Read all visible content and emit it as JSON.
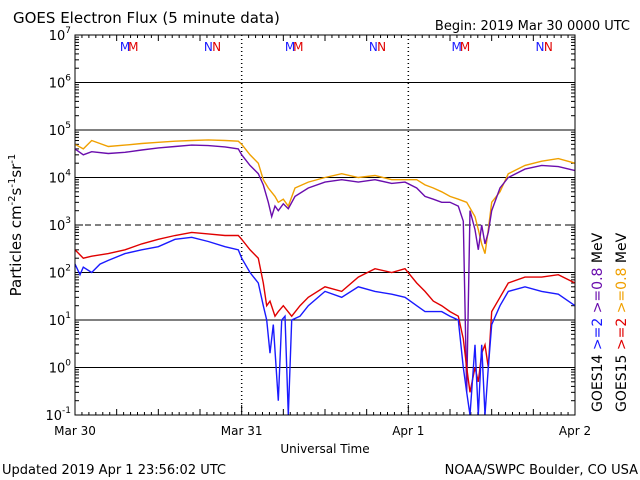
{
  "chart_data": {
    "type": "line",
    "title": "GOES Electron Flux (5 minute data)",
    "begin_label": "Begin: 2019 Mar 30 0000 UTC",
    "xlabel": "Universal Time",
    "ylabel_parts": {
      "main": "Particles cm",
      "exp1": "-2",
      "mid1": "s",
      "exp2": "-1",
      "mid2": "sr",
      "exp3": "-1"
    },
    "x_ticks": [
      "Mar 30",
      "Mar 31",
      "Apr 1",
      "Apr 2"
    ],
    "x_unit": "days since 2019 Mar 30 00:00 UTC",
    "xlim": [
      0,
      3
    ],
    "y_scale": "log",
    "ylim": [
      0.1,
      10000000
    ],
    "y_ticks": [
      {
        "base": "10",
        "exp": "7"
      },
      {
        "base": "10",
        "exp": "6"
      },
      {
        "base": "10",
        "exp": "5"
      },
      {
        "base": "10",
        "exp": "4"
      },
      {
        "base": "10",
        "exp": "3"
      },
      {
        "base": "10",
        "exp": "2"
      },
      {
        "base": "10",
        "exp": "1"
      },
      {
        "base": "10",
        "exp": "0"
      },
      {
        "base": "10",
        "exp": "-1"
      }
    ],
    "dashed_threshold": 1000,
    "magnetopause_markers": [
      {
        "label": "M",
        "color": "#1a1aff",
        "days": [
          0.3,
          1.29,
          2.29
        ]
      },
      {
        "label": "M",
        "color": "#e00000",
        "days": [
          0.35,
          1.34,
          2.34
        ]
      },
      {
        "label": "N",
        "color": "#1a1aff",
        "days": [
          0.8,
          1.79,
          2.79
        ]
      },
      {
        "label": "N",
        "color": "#e00000",
        "days": [
          0.85,
          1.84,
          2.84
        ]
      }
    ],
    "right_labels": [
      {
        "text": "GOES14",
        "color": "#000000"
      },
      {
        "text": ">=2",
        "color": "#1a1aff"
      },
      {
        "text": ">=0.8",
        "color": "#6a0dad"
      },
      {
        "text": "MeV",
        "color": "#000000"
      },
      {
        "text": "GOES15",
        "color": "#000000"
      },
      {
        "text": ">=2",
        "color": "#e00000"
      },
      {
        "text": ">=0.8",
        "color": "#f0a000"
      },
      {
        "text": "MeV",
        "color": "#000000"
      }
    ],
    "series": [
      {
        "name": "GOES15 >=0.8 MeV",
        "color": "#f0a000",
        "points": [
          [
            0,
            50000
          ],
          [
            0.05,
            40000
          ],
          [
            0.1,
            60000
          ],
          [
            0.2,
            45000
          ],
          [
            0.3,
            48000
          ],
          [
            0.4,
            52000
          ],
          [
            0.5,
            55000
          ],
          [
            0.6,
            58000
          ],
          [
            0.7,
            60000
          ],
          [
            0.8,
            62000
          ],
          [
            0.9,
            60000
          ],
          [
            0.98,
            58000
          ],
          [
            1.0,
            50000
          ],
          [
            1.05,
            30000
          ],
          [
            1.1,
            20000
          ],
          [
            1.13,
            9000
          ],
          [
            1.16,
            6000
          ],
          [
            1.2,
            4000
          ],
          [
            1.22,
            3000
          ],
          [
            1.25,
            3500
          ],
          [
            1.28,
            2500
          ],
          [
            1.32,
            6000
          ],
          [
            1.4,
            8000
          ],
          [
            1.5,
            10000
          ],
          [
            1.6,
            12000
          ],
          [
            1.7,
            10000
          ],
          [
            1.8,
            11000
          ],
          [
            1.9,
            9000
          ],
          [
            1.98,
            9000
          ],
          [
            2.05,
            9000
          ],
          [
            2.1,
            7000
          ],
          [
            2.15,
            6000
          ],
          [
            2.2,
            5000
          ],
          [
            2.25,
            4000
          ],
          [
            2.3,
            3500
          ],
          [
            2.35,
            3000
          ],
          [
            2.4,
            1500
          ],
          [
            2.42,
            800
          ],
          [
            2.44,
            400
          ],
          [
            2.46,
            250
          ],
          [
            2.48,
            800
          ],
          [
            2.5,
            3000
          ],
          [
            2.55,
            5000
          ],
          [
            2.6,
            12000
          ],
          [
            2.7,
            18000
          ],
          [
            2.8,
            22000
          ],
          [
            2.9,
            25000
          ],
          [
            3.0,
            20000
          ]
        ]
      },
      {
        "name": "GOES14 >=0.8 MeV",
        "color": "#6a0dad",
        "points": [
          [
            0,
            40000
          ],
          [
            0.05,
            30000
          ],
          [
            0.1,
            35000
          ],
          [
            0.2,
            32000
          ],
          [
            0.3,
            34000
          ],
          [
            0.4,
            38000
          ],
          [
            0.5,
            42000
          ],
          [
            0.6,
            45000
          ],
          [
            0.7,
            48000
          ],
          [
            0.8,
            47000
          ],
          [
            0.9,
            44000
          ],
          [
            0.98,
            40000
          ],
          [
            1.0,
            30000
          ],
          [
            1.05,
            18000
          ],
          [
            1.1,
            12000
          ],
          [
            1.13,
            7000
          ],
          [
            1.16,
            3000
          ],
          [
            1.18,
            1500
          ],
          [
            1.2,
            2500
          ],
          [
            1.22,
            2000
          ],
          [
            1.25,
            2800
          ],
          [
            1.28,
            2200
          ],
          [
            1.32,
            4000
          ],
          [
            1.4,
            6000
          ],
          [
            1.5,
            8000
          ],
          [
            1.6,
            9000
          ],
          [
            1.7,
            8000
          ],
          [
            1.8,
            9000
          ],
          [
            1.9,
            7500
          ],
          [
            1.98,
            8000
          ],
          [
            2.05,
            6000
          ],
          [
            2.1,
            4000
          ],
          [
            2.15,
            3500
          ],
          [
            2.2,
            3000
          ],
          [
            2.25,
            3000
          ],
          [
            2.3,
            2500
          ],
          [
            2.33,
            1200
          ],
          [
            2.35,
            0.3
          ],
          [
            2.37,
            2000
          ],
          [
            2.4,
            800
          ],
          [
            2.42,
            300
          ],
          [
            2.44,
            1000
          ],
          [
            2.46,
            400
          ],
          [
            2.48,
            700
          ],
          [
            2.5,
            2000
          ],
          [
            2.55,
            6000
          ],
          [
            2.6,
            10000
          ],
          [
            2.7,
            15000
          ],
          [
            2.8,
            18000
          ],
          [
            2.9,
            17000
          ],
          [
            3.0,
            14000
          ]
        ]
      },
      {
        "name": "GOES15 >=2 MeV",
        "color": "#e00000",
        "points": [
          [
            0,
            300
          ],
          [
            0.05,
            200
          ],
          [
            0.1,
            220
          ],
          [
            0.2,
            250
          ],
          [
            0.3,
            300
          ],
          [
            0.4,
            400
          ],
          [
            0.5,
            500
          ],
          [
            0.6,
            600
          ],
          [
            0.7,
            700
          ],
          [
            0.8,
            650
          ],
          [
            0.9,
            600
          ],
          [
            0.98,
            600
          ],
          [
            1.0,
            500
          ],
          [
            1.05,
            300
          ],
          [
            1.1,
            200
          ],
          [
            1.13,
            60
          ],
          [
            1.15,
            20
          ],
          [
            1.17,
            25
          ],
          [
            1.2,
            12
          ],
          [
            1.22,
            15
          ],
          [
            1.25,
            20
          ],
          [
            1.3,
            12
          ],
          [
            1.35,
            20
          ],
          [
            1.4,
            30
          ],
          [
            1.5,
            50
          ],
          [
            1.6,
            40
          ],
          [
            1.7,
            80
          ],
          [
            1.8,
            120
          ],
          [
            1.9,
            100
          ],
          [
            1.98,
            120
          ],
          [
            2.05,
            60
          ],
          [
            2.1,
            40
          ],
          [
            2.15,
            25
          ],
          [
            2.2,
            20
          ],
          [
            2.25,
            15
          ],
          [
            2.3,
            12
          ],
          [
            2.33,
            4
          ],
          [
            2.35,
            1
          ],
          [
            2.37,
            0.3
          ],
          [
            2.4,
            1
          ],
          [
            2.42,
            0.5
          ],
          [
            2.44,
            2
          ],
          [
            2.46,
            3
          ],
          [
            2.48,
            1
          ],
          [
            2.5,
            15
          ],
          [
            2.55,
            30
          ],
          [
            2.6,
            60
          ],
          [
            2.7,
            80
          ],
          [
            2.8,
            80
          ],
          [
            2.9,
            90
          ],
          [
            3.0,
            60
          ]
        ]
      },
      {
        "name": "GOES14 >=2 MeV",
        "color": "#1a1aff",
        "points": [
          [
            0,
            150
          ],
          [
            0.03,
            90
          ],
          [
            0.05,
            130
          ],
          [
            0.1,
            100
          ],
          [
            0.15,
            150
          ],
          [
            0.2,
            180
          ],
          [
            0.3,
            250
          ],
          [
            0.4,
            300
          ],
          [
            0.5,
            350
          ],
          [
            0.6,
            500
          ],
          [
            0.7,
            550
          ],
          [
            0.8,
            450
          ],
          [
            0.9,
            350
          ],
          [
            0.98,
            300
          ],
          [
            1.0,
            200
          ],
          [
            1.05,
            100
          ],
          [
            1.1,
            60
          ],
          [
            1.13,
            20
          ],
          [
            1.15,
            10
          ],
          [
            1.17,
            2
          ],
          [
            1.19,
            8
          ],
          [
            1.22,
            0.2
          ],
          [
            1.24,
            10
          ],
          [
            1.26,
            12
          ],
          [
            1.28,
            0.1
          ],
          [
            1.3,
            10
          ],
          [
            1.35,
            12
          ],
          [
            1.4,
            20
          ],
          [
            1.5,
            40
          ],
          [
            1.6,
            30
          ],
          [
            1.7,
            50
          ],
          [
            1.8,
            40
          ],
          [
            1.9,
            35
          ],
          [
            1.98,
            30
          ],
          [
            2.05,
            20
          ],
          [
            2.1,
            15
          ],
          [
            2.15,
            15
          ],
          [
            2.2,
            15
          ],
          [
            2.25,
            12
          ],
          [
            2.3,
            10
          ],
          [
            2.33,
            1
          ],
          [
            2.35,
            0.3
          ],
          [
            2.37,
            0.1
          ],
          [
            2.4,
            3
          ],
          [
            2.42,
            0.1
          ],
          [
            2.44,
            3
          ],
          [
            2.46,
            0.1
          ],
          [
            2.48,
            1
          ],
          [
            2.5,
            8
          ],
          [
            2.55,
            20
          ],
          [
            2.6,
            40
          ],
          [
            2.7,
            50
          ],
          [
            2.8,
            40
          ],
          [
            2.9,
            35
          ],
          [
            3.0,
            20
          ]
        ]
      }
    ]
  },
  "footer": {
    "updated": "Updated 2019 Apr  1 23:56:02 UTC",
    "source": "NOAA/SWPC Boulder, CO USA"
  }
}
